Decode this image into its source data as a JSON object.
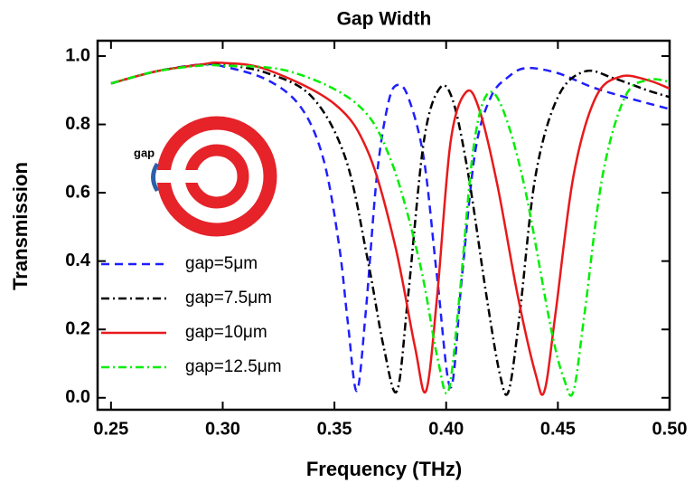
{
  "chart_data": {
    "type": "line",
    "title": "Gap Width",
    "x_label": "Frequency (THz)",
    "y_label": "Transmission",
    "inset_label": "gap",
    "xlim": [
      0.244,
      0.5
    ],
    "ylim": [
      -0.035,
      1.045
    ],
    "xticks": [
      {
        "value": 0.25,
        "label": "0.25"
      },
      {
        "value": 0.3,
        "label": "0.30"
      },
      {
        "value": 0.35,
        "label": "0.35"
      },
      {
        "value": 0.4,
        "label": "0.40"
      },
      {
        "value": 0.45,
        "label": "0.45"
      },
      {
        "value": 0.5,
        "label": "0.50"
      }
    ],
    "yticks": [
      {
        "value": 0,
        "label": "0.0"
      },
      0.2,
      0.4,
      0.6,
      0.8,
      {
        "value": 1,
        "label": "1.0"
      }
    ],
    "series": [
      {
        "name": "gap=5μm",
        "color": "#1f1fff",
        "dash": "9,6",
        "x": [
          0.25,
          0.27,
          0.29,
          0.3,
          0.32,
          0.335,
          0.345,
          0.352,
          0.356,
          0.36,
          0.364,
          0.369,
          0.374,
          0.378,
          0.383,
          0.39,
          0.396,
          0.402,
          0.407,
          0.413,
          0.42,
          0.428,
          0.436,
          0.45,
          0.465,
          0.48,
          0.5
        ],
        "values": [
          0.92,
          0.955,
          0.975,
          0.97,
          0.93,
          0.85,
          0.7,
          0.45,
          0.22,
          0.02,
          0.25,
          0.65,
          0.86,
          0.915,
          0.88,
          0.7,
          0.35,
          0.03,
          0.35,
          0.72,
          0.88,
          0.94,
          0.965,
          0.95,
          0.91,
          0.88,
          0.845
        ]
      },
      {
        "name": "gap=7.5μm",
        "color": "#000000",
        "dash": "9,4,2,4",
        "x": [
          0.25,
          0.27,
          0.29,
          0.3,
          0.32,
          0.34,
          0.355,
          0.365,
          0.372,
          0.378,
          0.383,
          0.39,
          0.397,
          0.403,
          0.41,
          0.418,
          0.424,
          0.428,
          0.433,
          0.44,
          0.45,
          0.462,
          0.475,
          0.49,
          0.5
        ],
        "values": [
          0.92,
          0.955,
          0.975,
          0.975,
          0.95,
          0.88,
          0.7,
          0.4,
          0.15,
          0.02,
          0.3,
          0.75,
          0.905,
          0.87,
          0.65,
          0.3,
          0.07,
          0.02,
          0.25,
          0.65,
          0.88,
          0.955,
          0.935,
          0.9,
          0.88
        ]
      },
      {
        "name": "gap=10μm",
        "color": "#e8191b",
        "dash": "",
        "x": [
          0.25,
          0.27,
          0.29,
          0.3,
          0.32,
          0.35,
          0.365,
          0.377,
          0.386,
          0.391,
          0.396,
          0.402,
          0.409,
          0.415,
          0.423,
          0.432,
          0.44,
          0.444,
          0.449,
          0.457,
          0.467,
          0.478,
          0.49,
          0.5
        ],
        "values": [
          0.92,
          0.955,
          0.975,
          0.98,
          0.96,
          0.86,
          0.72,
          0.45,
          0.15,
          0.02,
          0.3,
          0.75,
          0.895,
          0.84,
          0.62,
          0.3,
          0.07,
          0.02,
          0.25,
          0.65,
          0.88,
          0.94,
          0.93,
          0.905
        ]
      },
      {
        "name": "gap=12.5μm",
        "color": "#00ee00",
        "dash": "9,4,2,4",
        "x": [
          0.25,
          0.27,
          0.29,
          0.3,
          0.33,
          0.36,
          0.375,
          0.388,
          0.396,
          0.401,
          0.406,
          0.412,
          0.418,
          0.425,
          0.435,
          0.447,
          0.453,
          0.457,
          0.462,
          0.47,
          0.48,
          0.49,
          0.5
        ],
        "values": [
          0.92,
          0.955,
          0.972,
          0.972,
          0.955,
          0.86,
          0.7,
          0.4,
          0.12,
          0.02,
          0.3,
          0.72,
          0.885,
          0.85,
          0.62,
          0.2,
          0.05,
          0.02,
          0.25,
          0.65,
          0.88,
          0.93,
          0.925
        ]
      }
    ]
  }
}
